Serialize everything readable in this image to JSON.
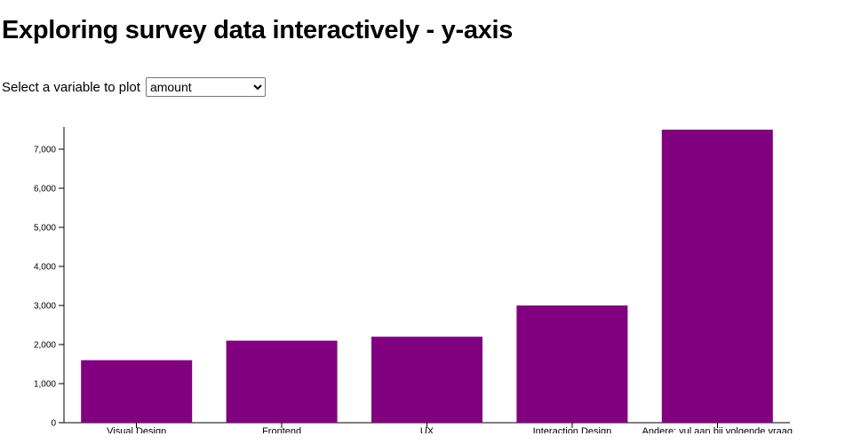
{
  "page": {
    "title": "Exploring survey data interactively - y-axis",
    "select_label": "Select a variable to plot",
    "select_value": "amount"
  },
  "chart_data": {
    "type": "bar",
    "categories": [
      "Visual Design",
      "Frontend",
      "UX",
      "Interaction Design",
      "Andere; vul aan bij volgende vraag"
    ],
    "values": [
      1600,
      2100,
      2200,
      3000,
      7500
    ],
    "title": "",
    "xlabel": "",
    "ylabel": "",
    "ylim": [
      0,
      7500
    ],
    "y_ticks": [
      0,
      1000,
      2000,
      3000,
      4000,
      5000,
      6000,
      7000
    ],
    "bar_color": "#800080",
    "axis_color": "#000000",
    "grid": false,
    "legend_position": "none"
  }
}
